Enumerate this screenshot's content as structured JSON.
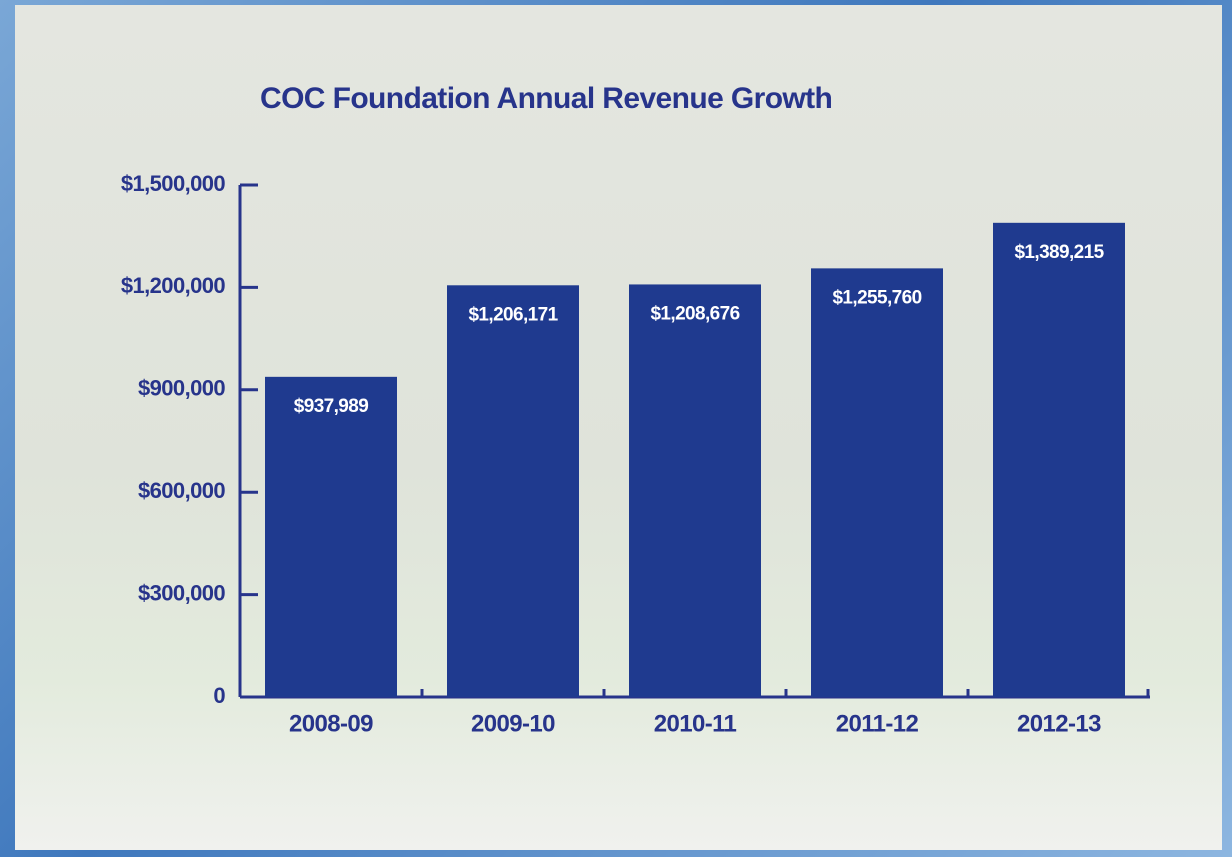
{
  "chart_data": {
    "type": "bar",
    "title": "COC Foundation Annual Revenue Growth",
    "categories": [
      "2008-09",
      "2009-10",
      "2010-11",
      "2011-12",
      "2012-13"
    ],
    "values": [
      937989,
      1206171,
      1208676,
      1255760,
      1389215
    ],
    "value_labels": [
      "$937,989",
      "$1,206,171",
      "$1,208,676",
      "$1,255,760",
      "$1,389,215"
    ],
    "color": "#1f3a8f",
    "ylim": [
      0,
      1500000
    ],
    "yticks": [
      0,
      {
        "value": 300000,
        "label": "$300,000"
      },
      {
        "value": 600000,
        "label": "$600,000"
      },
      {
        "value": 900000,
        "label": "$900,000"
      },
      {
        "value": 1200000,
        "label": "$1,200,000"
      },
      {
        "value": 1500000,
        "label": "$1,500,000"
      }
    ]
  }
}
